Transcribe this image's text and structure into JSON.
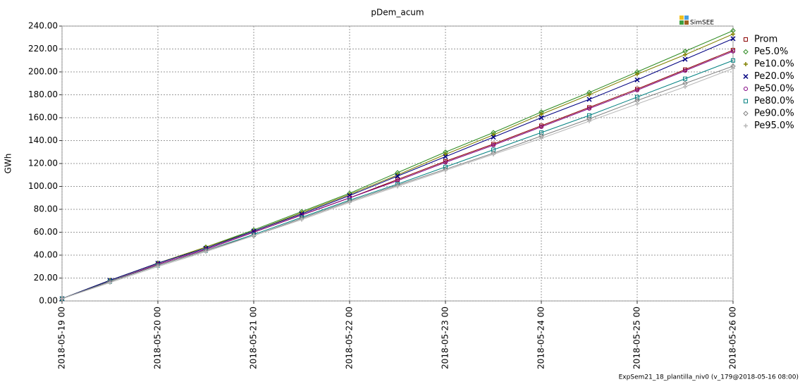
{
  "chart_data": {
    "type": "line",
    "title": "pDem_acum",
    "y_label": "GWh",
    "logo": "SimSEE",
    "footer": "ExpSem21_18_plantilla_niv0 (v_179@2018-05-16 08:00)",
    "categories": [
      "2018-05-19 00",
      null,
      "2018-05-20 00",
      null,
      "2018-05-21 00",
      null,
      "2018-05-22 00",
      null,
      "2018-05-23 00",
      null,
      "2018-05-24 00",
      null,
      "2018-05-25 00",
      null,
      "2018-05-26 00"
    ],
    "ylim": [
      0,
      240
    ],
    "yticks": [
      {
        "value": 0,
        "label": "0.00"
      },
      {
        "value": 20,
        "label": "20.00"
      },
      {
        "value": 40,
        "label": "40.00"
      },
      {
        "value": 60,
        "label": "60.00"
      },
      {
        "value": 80,
        "label": "80.00"
      },
      {
        "value": 100,
        "label": "100.00"
      },
      {
        "value": 120,
        "label": "120.00"
      },
      {
        "value": 140,
        "label": "140.00"
      },
      {
        "value": 160,
        "label": "160.00"
      },
      {
        "value": 180,
        "label": "180.00"
      },
      {
        "value": 200,
        "label": "200.00"
      },
      {
        "value": 220,
        "label": "220.00"
      },
      {
        "value": 240,
        "label": "240.00"
      }
    ],
    "grid": true,
    "legend": "right",
    "series": [
      {
        "name": "Prom",
        "color": "#8b0000",
        "marker": "square",
        "values": [
          2,
          17,
          32,
          45,
          60,
          75,
          90,
          106,
          122,
          137,
          153,
          169,
          185,
          202,
          219
        ]
      },
      {
        "name": "Pe5.0%",
        "color": "#2e8b22",
        "marker": "diamond",
        "values": [
          2,
          18,
          33,
          47,
          62,
          78,
          94,
          112,
          130,
          147,
          165,
          182,
          200,
          218,
          236
        ]
      },
      {
        "name": "Pe10.0%",
        "color": "#808000",
        "marker": "plus",
        "values": [
          2,
          18,
          33,
          47,
          61,
          77,
          93,
          110,
          128,
          145,
          163,
          180,
          198,
          215,
          233
        ]
      },
      {
        "name": "Pe20.0%",
        "color": "#000080",
        "marker": "cross",
        "values": [
          2,
          18,
          33,
          46,
          61,
          76,
          92,
          109,
          126,
          143,
          160,
          176,
          193,
          211,
          229
        ]
      },
      {
        "name": "Pe50.0%",
        "color": "#800080",
        "marker": "circle",
        "values": [
          2,
          17,
          32,
          45,
          60,
          75,
          90,
          105,
          121,
          136,
          152,
          168,
          184,
          201,
          218
        ]
      },
      {
        "name": "Pe80.0%",
        "color": "#008080",
        "marker": "square",
        "values": [
          2,
          17,
          31,
          44,
          58,
          73,
          88,
          102,
          117,
          132,
          147,
          162,
          178,
          194,
          210
        ]
      },
      {
        "name": "Pe90.0%",
        "color": "#808080",
        "marker": "diamond",
        "values": [
          2,
          17,
          31,
          44,
          57,
          72,
          87,
          101,
          115,
          129,
          144,
          159,
          175,
          190,
          205
        ]
      },
      {
        "name": "Pe95.0%",
        "color": "#b8b8b8",
        "marker": "plus",
        "values": [
          2,
          16,
          30,
          43,
          57,
          71,
          86,
          100,
          114,
          128,
          142,
          157,
          172,
          187,
          203
        ]
      }
    ]
  }
}
